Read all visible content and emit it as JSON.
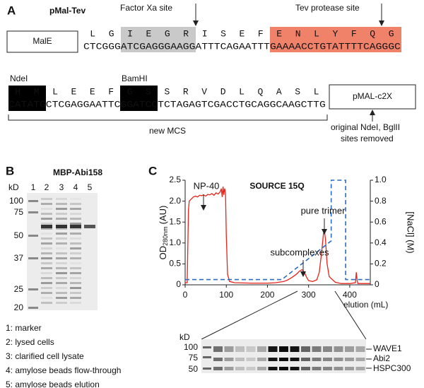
{
  "panel_a": {
    "label": "A",
    "construct": "pMal-Tev",
    "male": "MalE",
    "factor_xa": "Factor Xa site",
    "tev": "Tev protease site",
    "row1_aa": [
      [
        "L",
        "G"
      ],
      [
        "I",
        "E",
        "G",
        "R"
      ],
      [
        "I",
        "S",
        "E",
        "F"
      ],
      [
        "E",
        "N",
        "L",
        "Y",
        "F",
        "Q",
        "G"
      ]
    ],
    "row1_dna": [
      "CTCGGG",
      "ATCGAGGGAAGG",
      "ATTTCAGAATTT",
      "GAAAACCTGTATTTTCAGGGC"
    ],
    "ndei": "NdeI",
    "bamhi": "BamHI",
    "row2_aa": [
      [
        "H",
        "M"
      ],
      [
        "L",
        "E",
        "E",
        "F"
      ],
      [
        "G",
        "S"
      ],
      [
        "S",
        "R",
        "V",
        "D",
        "L",
        "Q",
        "A",
        "S",
        "L"
      ]
    ],
    "row2_dna": [
      "CATATG",
      "CTCGAGGAATTC",
      "GGATCC",
      "TCTAGAGTCGACCTGCAGGCAAGCTTG"
    ],
    "vector": "pMAL-c2X",
    "mcs": "new MCS",
    "note": [
      "original NdeI, BglII",
      "sites removed"
    ]
  },
  "panel_b": {
    "label": "B",
    "title": "MBP-Abi158",
    "kd": "kD",
    "lanes": [
      "1",
      "2",
      "3",
      "4",
      "5"
    ],
    "markers": [
      "100",
      "75",
      "50",
      "37",
      "25",
      "20"
    ],
    "legend": [
      "1: marker",
      "2: lysed cells",
      "3: clarified cell lysate",
      "4: amylose beads flow-through",
      "5: amylose beads elution"
    ]
  },
  "panel_c_gel": {
    "kd": "kD",
    "markers": [
      "100",
      "75",
      "50"
    ],
    "bands": [
      "WAVE1",
      "Abi2",
      "HSPC300"
    ]
  },
  "chart_data": {
    "type": "line",
    "panel": "C",
    "title": "SOURCE 15Q",
    "xlabel": "elution (mL)",
    "ylabel": [
      "OD",
      "280nm",
      "(AU)"
    ],
    "y2label": "[NaCl] (M)",
    "xlim": [
      0,
      450
    ],
    "xticks": [
      0,
      100,
      200,
      300,
      400
    ],
    "ylim": [
      0,
      2.5
    ],
    "yticks": [
      0,
      0.5,
      {
        "value": 1,
        "label": "1.0"
      },
      1.5,
      {
        "value": 2,
        "label": "2.0"
      },
      2.5
    ],
    "y2lim": [
      0,
      1
    ],
    "y2ticks": [
      0,
      0.2,
      0.4,
      0.6,
      0.8,
      {
        "value": 1,
        "label": "1.0"
      }
    ],
    "annotations": [
      "NP-40",
      "subcomplexes",
      "pure trimer"
    ],
    "series": [
      {
        "color": "#e8231a",
        "x": [
          0,
          5,
          8,
          10,
          15,
          20,
          25,
          30,
          35,
          40,
          45,
          50,
          55,
          60,
          65,
          70,
          75,
          80,
          85,
          88,
          90,
          92,
          94,
          96,
          98,
          100,
          103,
          108,
          120,
          160,
          200,
          220,
          240,
          250,
          260,
          270,
          278,
          284,
          290,
          295,
          300,
          310,
          320,
          326,
          332,
          336,
          338,
          341,
          345,
          350,
          355,
          365,
          380,
          400,
          414,
          416,
          418,
          420,
          425,
          440,
          450
        ],
        "values": [
          0.05,
          0.05,
          1.8,
          2.0,
          2.05,
          2.1,
          2.12,
          2.1,
          2.14,
          2.13,
          2.15,
          2.12,
          2.16,
          2.15,
          2.18,
          2.14,
          2.2,
          2.17,
          2.22,
          2.3,
          2.1,
          2.35,
          2.15,
          2.3,
          2.2,
          1.2,
          0.25,
          0.08,
          0.05,
          0.04,
          0.04,
          0.05,
          0.08,
          0.12,
          0.18,
          0.25,
          0.33,
          0.36,
          0.3,
          0.18,
          0.1,
          0.08,
          0.12,
          0.3,
          0.8,
          1.2,
          1.32,
          1.1,
          0.5,
          0.2,
          0.15,
          0.06,
          0.03,
          0.03,
          0.05,
          0.3,
          0.1,
          0.03,
          0.03,
          0.03,
          0.03
        ]
      },
      {
        "color": "#2a6cc4",
        "axis": "y2",
        "dashed": true,
        "x": [
          0,
          235,
          355,
          355,
          390,
          390,
          450
        ],
        "values": [
          0.05,
          0.05,
          0.42,
          1,
          1,
          0.05,
          0.05
        ]
      }
    ]
  }
}
